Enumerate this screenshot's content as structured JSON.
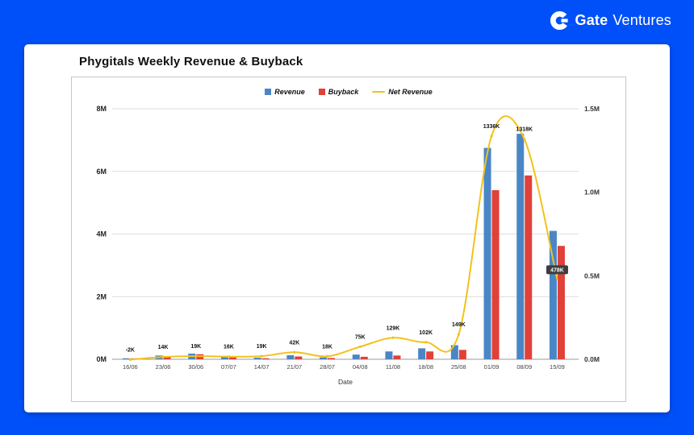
{
  "header": {
    "brand_bold": "Gate",
    "brand_light": "Ventures"
  },
  "title": "Phygitals Weekly Revenue & Buyback",
  "theme": {
    "frame_blue": "#0050fa",
    "revenue_blue": "#4a86c5",
    "buyback_red": "#e04138",
    "net_yellow": "#f2c21c",
    "grid_gray": "#dcdcdc",
    "axis_gray": "#9a9a9a"
  },
  "chart_data": {
    "type": "bar",
    "title": "Phygitals Weekly Revenue & Buyback",
    "xlabel": "Date",
    "legend_position": "top",
    "grid": true,
    "categories": [
      "16/06",
      "23/06",
      "30/06",
      "07/07",
      "14/07",
      "21/07",
      "28/07",
      "04/08",
      "11/08",
      "18/08",
      "25/08",
      "01/09",
      "08/09",
      "15/09"
    ],
    "left_axis": {
      "ticks": [
        "0M",
        "2M",
        "4M",
        "6M",
        "8M"
      ],
      "tick_values_M": [
        0,
        2,
        4,
        6,
        8
      ],
      "max_M": 8
    },
    "right_axis": {
      "ticks": [
        "0.0M",
        "0.5M",
        "1.0M",
        "1.5M"
      ],
      "tick_values_M": [
        0,
        0.5,
        1.0,
        1.5
      ],
      "max_M": 1.5
    },
    "series": [
      {
        "name": "Revenue",
        "type": "bar",
        "axis": "left",
        "color": "#4a86c5",
        "values_M": [
          0.03,
          0.12,
          0.18,
          0.08,
          0.05,
          0.13,
          0.06,
          0.15,
          0.25,
          0.35,
          0.45,
          6.75,
          7.2,
          4.1
        ]
      },
      {
        "name": "Buyback",
        "type": "bar",
        "axis": "left",
        "color": "#e04138",
        "values_M": [
          0.03,
          0.1,
          0.16,
          0.06,
          0.03,
          0.09,
          0.04,
          0.08,
          0.12,
          0.25,
          0.3,
          5.4,
          5.87,
          3.62
        ]
      },
      {
        "name": "Net Revenue",
        "type": "line",
        "axis": "right",
        "color": "#f2c21c",
        "values_K": [
          -2,
          14,
          19,
          16,
          19,
          42,
          18,
          75,
          129,
          102,
          149,
          1336,
          1318,
          478
        ],
        "labels": [
          "-2K",
          "14K",
          "19K",
          "16K",
          "19K",
          "42K",
          "18K",
          "75K",
          "129K",
          "102K",
          "149K",
          "1336K",
          "1318K",
          "478K"
        ]
      }
    ],
    "highlight_label": {
      "index": 13,
      "text": "478K",
      "bg": "#3d3d3d",
      "fg": "#ffffff"
    }
  }
}
